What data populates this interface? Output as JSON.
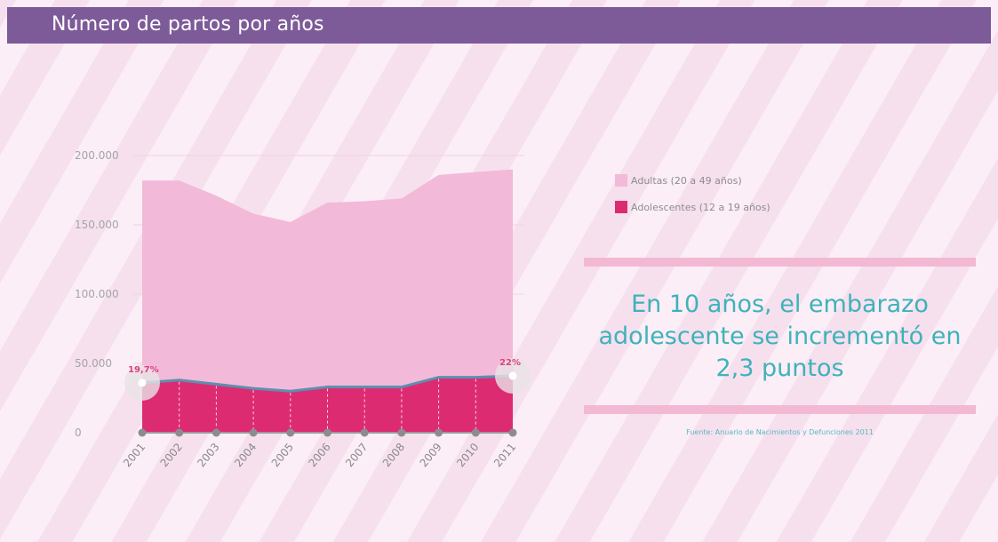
{
  "header": {
    "title": "Número de partos por años"
  },
  "legend": {
    "items": [
      {
        "label": "Adultas (20 a 49 años)",
        "color": "#f3b9d8"
      },
      {
        "label": "Adolescentes (12 a 19 años)",
        "color": "#dd2b72"
      }
    ]
  },
  "headline": "En 10 años, el embarazo adolescente se incrementó en 2,3 puntos",
  "source": "Fuente: Anuario de Nacimientos y Defunciones 2011",
  "colors": {
    "header": "#7d5a98",
    "adultas": "#f3b9d8",
    "adolescentes": "#dd2b72",
    "line": "#5d8fb0",
    "headline": "#3fb2ba",
    "band": "#f3b9d4",
    "label_accent": "#e0407f"
  },
  "chart_data": {
    "type": "area",
    "x": [
      "2001",
      "2002",
      "2003",
      "2004",
      "2005",
      "2006",
      "2007",
      "2008",
      "2009",
      "2010",
      "2011"
    ],
    "y_ticks": [
      "0",
      "50.000",
      "100.000",
      "150.000",
      "200.000"
    ],
    "ylim": [
      0,
      200000
    ],
    "grid": true,
    "legend_position": "right",
    "series": [
      {
        "name": "Adultas (20 a 49 años)",
        "values": [
          182000,
          182000,
          171000,
          158000,
          152000,
          166000,
          167000,
          169000,
          186000,
          188000,
          190000
        ]
      },
      {
        "name": "Adolescentes (12 a 19 años)",
        "values": [
          36000,
          38000,
          35000,
          32000,
          30000,
          33000,
          33000,
          33000,
          40000,
          40000,
          41000
        ]
      }
    ],
    "annotations": [
      {
        "x": "2001",
        "label": "19,7%"
      },
      {
        "x": "2011",
        "label": "22%"
      }
    ]
  }
}
